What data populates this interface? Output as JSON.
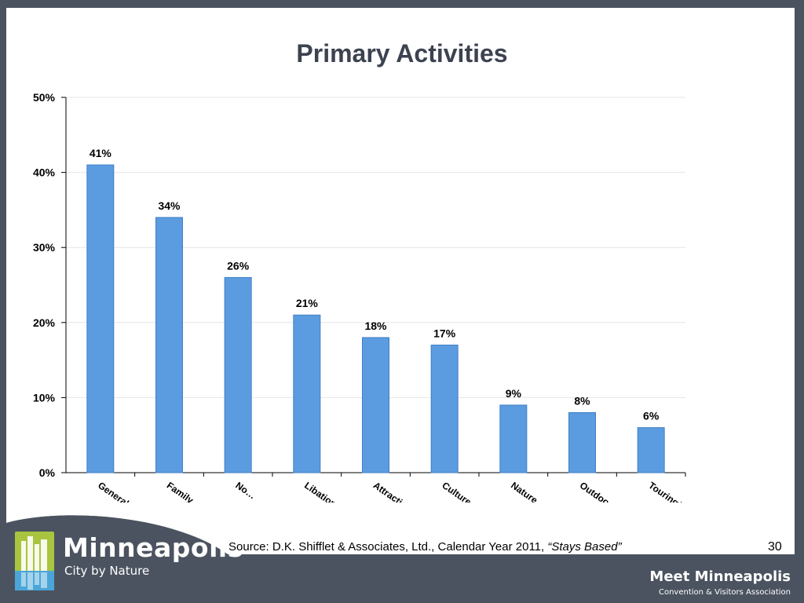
{
  "slide": {
    "title": "Primary Activities",
    "source_prefix": "Source: D.K. Shifflet & Associates, Ltd., Calendar Year 2011, ",
    "source_emphasis": "“Stays Based”",
    "page_number": "30"
  },
  "branding": {
    "name": "Minneapolis",
    "tagline": "City by Nature",
    "org_name": "Meet Minneapolis",
    "org_subtitle": "Convention & Visitors Association",
    "logo_icon": "city-skyline-icon",
    "logo_color": "#a9c53f",
    "logo_accent": "#4aa6d8"
  },
  "chart_data": {
    "type": "bar",
    "title": "Primary Activities",
    "categories": [
      "General",
      "Family…",
      "No…",
      "Libation/…",
      "Attractio…",
      "Culture",
      "Nature",
      "Outdoor…",
      "Touring/…"
    ],
    "values": [
      41,
      34,
      26,
      21,
      18,
      17,
      9,
      8,
      6
    ],
    "data_labels": [
      "41%",
      "34%",
      "26%",
      "21%",
      "18%",
      "17%",
      "9%",
      "8%",
      "6%"
    ],
    "y_ticks": [
      "0%",
      "10%",
      "20%",
      "30%",
      "40%",
      "50%"
    ],
    "ylim": [
      0,
      50
    ],
    "grid": true,
    "legend": "none",
    "bar_color": "#5b9be0",
    "bar_edge_color": "#3f7fc6"
  }
}
